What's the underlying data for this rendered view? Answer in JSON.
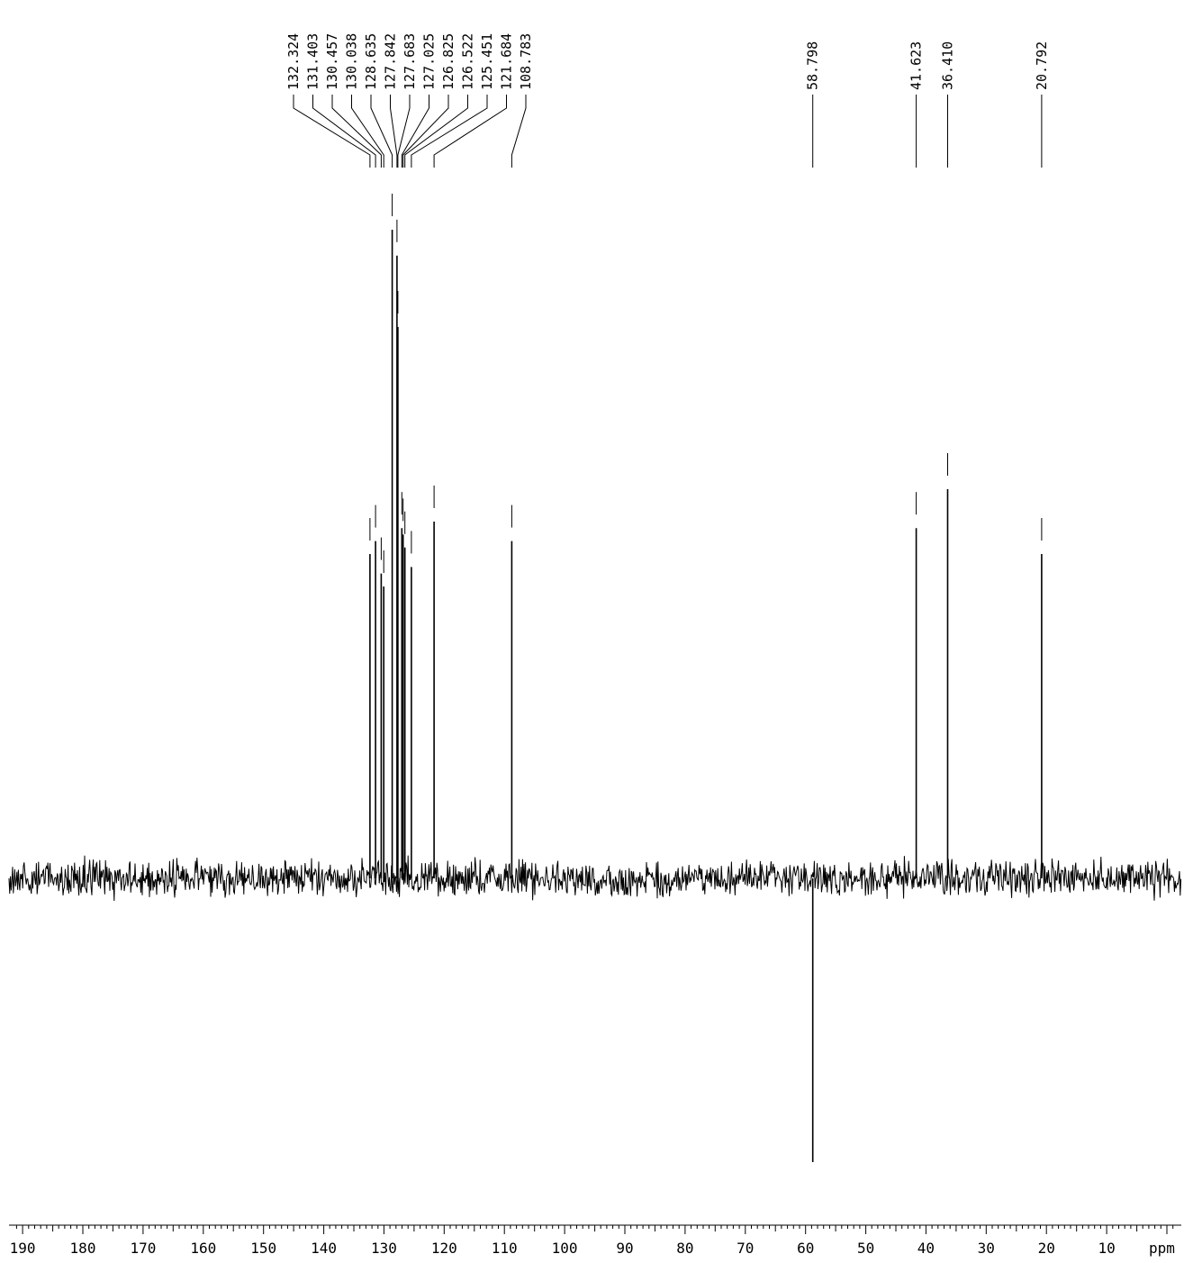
{
  "chart_data": {
    "type": "line",
    "title": "",
    "xlabel": "ppm",
    "ylabel": "",
    "x_reversed": true,
    "xlim": [
      191,
      -1
    ],
    "grid": false,
    "colors": {
      "trace": "#000000",
      "axis": "#000000",
      "background": "#ffffff"
    },
    "x_tick_labels": [
      "190",
      "180",
      "170",
      "160",
      "150",
      "140",
      "130",
      "120",
      "110",
      "100",
      "90",
      "80",
      "70",
      "60",
      "50",
      "40",
      "30",
      "20",
      "10"
    ],
    "x_unit_label": "ppm",
    "peak_labels": [
      "132.324",
      "131.403",
      "130.457",
      "130.038",
      "128.635",
      "127.842",
      "127.683",
      "127.025",
      "126.825",
      "126.522",
      "125.451",
      "121.684",
      "108.783",
      "58.798",
      "41.623",
      "36.410",
      "20.792"
    ],
    "peaks": [
      {
        "ppm": 132.324,
        "intensity": 0.5
      },
      {
        "ppm": 131.403,
        "intensity": 0.52
      },
      {
        "ppm": 130.457,
        "intensity": 0.47
      },
      {
        "ppm": 130.038,
        "intensity": 0.45
      },
      {
        "ppm": 128.635,
        "intensity": 1.0
      },
      {
        "ppm": 127.842,
        "intensity": 0.96
      },
      {
        "ppm": 127.683,
        "intensity": 0.85
      },
      {
        "ppm": 127.025,
        "intensity": 0.54
      },
      {
        "ppm": 126.825,
        "intensity": 0.53
      },
      {
        "ppm": 126.522,
        "intensity": 0.51
      },
      {
        "ppm": 125.451,
        "intensity": 0.48
      },
      {
        "ppm": 121.684,
        "intensity": 0.55
      },
      {
        "ppm": 108.783,
        "intensity": 0.52
      },
      {
        "ppm": 58.798,
        "intensity": -0.45
      },
      {
        "ppm": 41.623,
        "intensity": 0.54
      },
      {
        "ppm": 36.41,
        "intensity": 0.6
      },
      {
        "ppm": 20.792,
        "intensity": 0.5
      }
    ]
  }
}
